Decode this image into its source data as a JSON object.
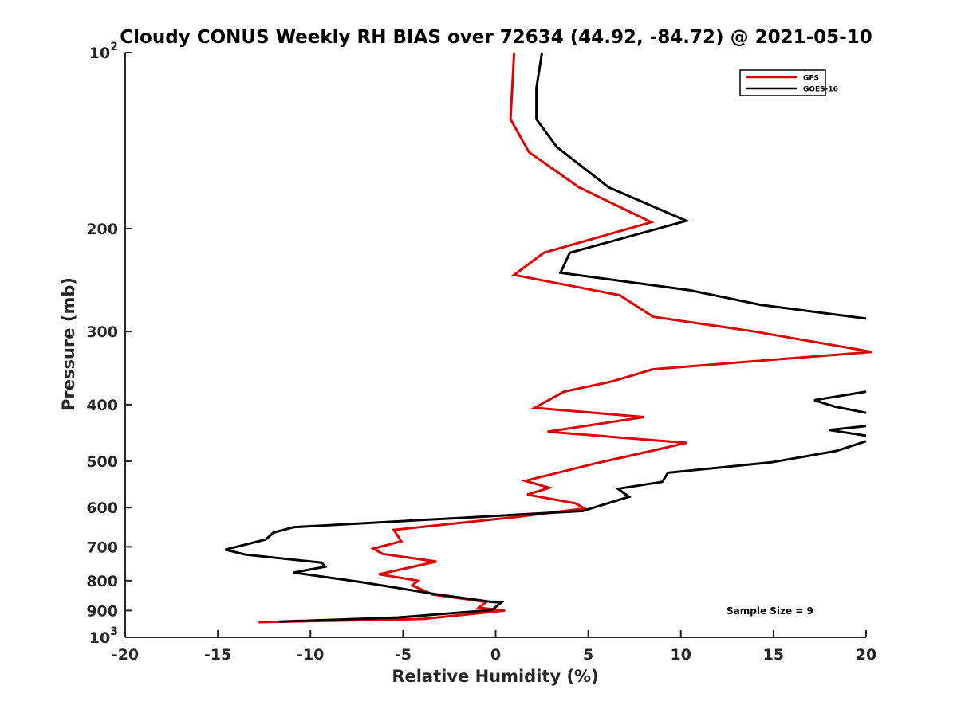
{
  "chart_data": {
    "type": "line",
    "title": "Cloudy CONUS Weekly RH BIAS over 72634 (44.92, -84.72) @ 2021-05-10",
    "xlabel": "Relative Humidity (%)",
    "ylabel": "Pressure (mb)",
    "xlim": [
      -20,
      20
    ],
    "ylim": [
      1000,
      100
    ],
    "y_scale": "log",
    "y_reversed": true,
    "x_ticks": [
      "-20",
      "-15",
      "-10",
      "-5",
      "0",
      "5",
      "10",
      "15",
      "20"
    ],
    "y_ticks": [
      {
        "value": 100,
        "base": "10",
        "exp": "2"
      },
      {
        "value": 200,
        "label": "200"
      },
      {
        "value": 300,
        "label": "300"
      },
      {
        "value": 400,
        "label": "400"
      },
      {
        "value": 500,
        "label": "500"
      },
      {
        "value": 600,
        "label": "600"
      },
      {
        "value": 700,
        "label": "700"
      },
      {
        "value": 800,
        "label": "800"
      },
      {
        "value": 900,
        "label": "900"
      },
      {
        "value": 1000,
        "base": "10",
        "exp": "3"
      }
    ],
    "legend_position": "top-right",
    "grid": false,
    "annotation": "Sample Size = 9",
    "series": [
      {
        "name": "GFS",
        "color": "#dd0000",
        "points": [
          [
            1.0,
            100
          ],
          [
            0.8,
            130
          ],
          [
            1.8,
            148
          ],
          [
            4.5,
            170
          ],
          [
            8.4,
            195
          ],
          [
            2.6,
            220
          ],
          [
            1.0,
            240
          ],
          [
            6.7,
            260
          ],
          [
            8.5,
            283
          ],
          [
            14.0,
            300
          ],
          [
            20.3,
            325
          ],
          [
            8.5,
            348
          ],
          [
            6.3,
            365
          ],
          [
            3.7,
            380
          ],
          [
            2.1,
            405
          ],
          [
            8.0,
            420
          ],
          [
            2.8,
            445
          ],
          [
            10.3,
            465
          ],
          [
            8.4,
            480
          ],
          [
            5.3,
            505
          ],
          [
            1.6,
            540
          ],
          [
            2.9,
            555
          ],
          [
            1.7,
            570
          ],
          [
            4.3,
            590
          ],
          [
            4.8,
            602
          ],
          [
            1.0,
            623
          ],
          [
            -5.5,
            655
          ],
          [
            -5.1,
            685
          ],
          [
            -6.6,
            705
          ],
          [
            -6.1,
            720
          ],
          [
            -3.2,
            742
          ],
          [
            -6.3,
            780
          ],
          [
            -4.2,
            800
          ],
          [
            -4.5,
            815
          ],
          [
            -3.4,
            845
          ],
          [
            -0.5,
            870
          ],
          [
            -0.9,
            890
          ],
          [
            0.5,
            900
          ],
          [
            -3.9,
            930
          ],
          [
            -12.8,
            942
          ]
        ]
      },
      {
        "name": "GOES-16",
        "color": "#000000",
        "points": [
          [
            2.5,
            100
          ],
          [
            2.2,
            115
          ],
          [
            2.2,
            130
          ],
          [
            3.3,
            145
          ],
          [
            6.1,
            170
          ],
          [
            10.3,
            194
          ],
          [
            4.0,
            220
          ],
          [
            3.5,
            238
          ],
          [
            10.5,
            255
          ],
          [
            14.3,
            270
          ],
          [
            20.0,
            285
          ],
          null,
          [
            20.0,
            380
          ],
          [
            17.2,
            393
          ],
          [
            18.3,
            403
          ],
          [
            20.0,
            413
          ],
          null,
          [
            20.0,
            435
          ],
          [
            18.0,
            442
          ],
          [
            20.0,
            452
          ],
          null,
          [
            20.0,
            462
          ],
          [
            18.4,
            480
          ],
          [
            14.9,
            502
          ],
          [
            9.3,
            523
          ],
          [
            9.0,
            542
          ],
          [
            6.6,
            557
          ],
          [
            7.2,
            575
          ],
          [
            4.7,
            608
          ],
          [
            -2.0,
            625
          ],
          [
            -10.9,
            648
          ],
          [
            -12.0,
            662
          ],
          [
            -12.4,
            680
          ],
          [
            -14.6,
            708
          ],
          [
            -13.5,
            722
          ],
          [
            -9.4,
            745
          ],
          [
            -9.2,
            757
          ],
          [
            -10.9,
            775
          ],
          [
            -7.2,
            805
          ],
          [
            -3.1,
            845
          ],
          [
            -0.2,
            870
          ],
          [
            0.3,
            872
          ],
          [
            -0.2,
            898
          ],
          [
            -5.3,
            925
          ],
          [
            -11.7,
            940
          ]
        ]
      }
    ]
  }
}
